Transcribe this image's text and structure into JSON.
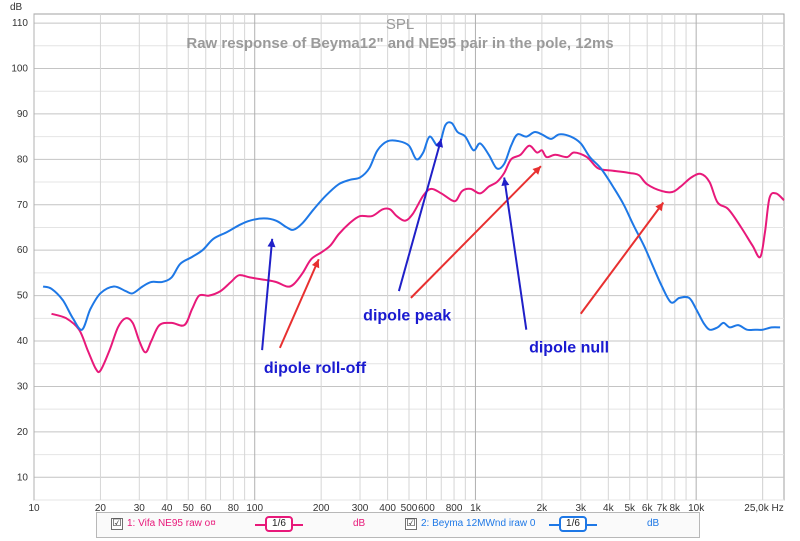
{
  "chart_data": {
    "type": "line",
    "title": "SPL",
    "subtitle": "Raw response of Beyma12\" and NE95 pair in the pole, 12ms",
    "ylabel": "dB",
    "xlabel": "Hz",
    "x_scale": "log",
    "xlim": [
      10,
      25000
    ],
    "ylim": [
      5,
      112
    ],
    "grid": true,
    "y_ticks": [
      10,
      20,
      30,
      40,
      50,
      60,
      70,
      80,
      90,
      100,
      110
    ],
    "y_tick_labels": [
      "10",
      "20",
      "30",
      "40",
      "50",
      "60",
      "70",
      "80",
      "90",
      "100",
      "110"
    ],
    "y_unit_label": "dB",
    "x_ticks": [
      10,
      20,
      30,
      40,
      50,
      60,
      80,
      100,
      200,
      300,
      400,
      500,
      600,
      800,
      1000,
      2000,
      3000,
      4000,
      5000,
      6000,
      7000,
      8000,
      10000,
      25000
    ],
    "x_tick_labels": [
      "10",
      "20",
      "30",
      "40",
      "50",
      "60",
      "80",
      "100",
      "200",
      "300",
      "400",
      "500",
      "600",
      "800",
      "1k",
      "2k",
      "3k",
      "4k",
      "5k",
      "6k",
      "7k",
      "8k",
      "10k",
      "25,0k Hz"
    ],
    "series": [
      {
        "name": "1: Vifa NE95 raw o¤",
        "color": "#e8197a",
        "points": [
          [
            12,
            46
          ],
          [
            14,
            45
          ],
          [
            16,
            42.5
          ],
          [
            17.5,
            38
          ],
          [
            19,
            34
          ],
          [
            20,
            33.5
          ],
          [
            22,
            38
          ],
          [
            24,
            43
          ],
          [
            26,
            45
          ],
          [
            28,
            44
          ],
          [
            30,
            40
          ],
          [
            32,
            37.5
          ],
          [
            34,
            40
          ],
          [
            37,
            43.5
          ],
          [
            42,
            44
          ],
          [
            48,
            43.5
          ],
          [
            52,
            47
          ],
          [
            56,
            50
          ],
          [
            62,
            50
          ],
          [
            70,
            51
          ],
          [
            78,
            53
          ],
          [
            85,
            54.5
          ],
          [
            95,
            54
          ],
          [
            110,
            53.5
          ],
          [
            125,
            53
          ],
          [
            140,
            52
          ],
          [
            150,
            52.5
          ],
          [
            165,
            55
          ],
          [
            180,
            58
          ],
          [
            200,
            59.5
          ],
          [
            220,
            61
          ],
          [
            240,
            63.5
          ],
          [
            270,
            66
          ],
          [
            300,
            67.5
          ],
          [
            340,
            67.5
          ],
          [
            380,
            69
          ],
          [
            410,
            69
          ],
          [
            440,
            67.5
          ],
          [
            480,
            66.5
          ],
          [
            520,
            68
          ],
          [
            580,
            72
          ],
          [
            630,
            73.5
          ],
          [
            700,
            72.5
          ],
          [
            780,
            71
          ],
          [
            820,
            71
          ],
          [
            870,
            73
          ],
          [
            950,
            73.5
          ],
          [
            1050,
            72.5
          ],
          [
            1150,
            74
          ],
          [
            1250,
            75
          ],
          [
            1350,
            77
          ],
          [
            1450,
            80
          ],
          [
            1600,
            81
          ],
          [
            1750,
            83
          ],
          [
            1900,
            81.5
          ],
          [
            2000,
            82
          ],
          [
            2100,
            80.5
          ],
          [
            2300,
            81
          ],
          [
            2600,
            80.5
          ],
          [
            2800,
            81.5
          ],
          [
            3200,
            80.5
          ],
          [
            3600,
            78
          ],
          [
            4200,
            77.5
          ],
          [
            5000,
            77
          ],
          [
            5500,
            76.5
          ],
          [
            6000,
            74.5
          ],
          [
            7000,
            73
          ],
          [
            7800,
            72.8
          ],
          [
            8500,
            74
          ],
          [
            9500,
            76
          ],
          [
            10500,
            76.8
          ],
          [
            11500,
            75
          ],
          [
            12500,
            70.5
          ],
          [
            14000,
            69
          ],
          [
            16000,
            65
          ],
          [
            18000,
            61
          ],
          [
            19500,
            58.5
          ],
          [
            20500,
            64
          ],
          [
            21500,
            71.5
          ],
          [
            23000,
            72.5
          ],
          [
            25000,
            71
          ]
        ]
      },
      {
        "name": "2: Beyma 12MWnd iraw 0",
        "color": "#1e78e6",
        "points": [
          [
            11,
            52
          ],
          [
            12,
            51.5
          ],
          [
            13.5,
            49
          ],
          [
            15,
            45
          ],
          [
            16.5,
            42.5
          ],
          [
            18,
            47
          ],
          [
            20,
            50.5
          ],
          [
            23,
            52
          ],
          [
            26,
            51
          ],
          [
            28,
            50.5
          ],
          [
            31,
            52
          ],
          [
            34,
            53
          ],
          [
            38,
            53
          ],
          [
            42,
            54
          ],
          [
            46,
            57
          ],
          [
            52,
            58.5
          ],
          [
            58,
            60
          ],
          [
            65,
            62.5
          ],
          [
            75,
            64
          ],
          [
            85,
            65.5
          ],
          [
            95,
            66.5
          ],
          [
            110,
            67
          ],
          [
            125,
            66.5
          ],
          [
            140,
            65
          ],
          [
            150,
            64.5
          ],
          [
            165,
            66
          ],
          [
            185,
            69
          ],
          [
            210,
            72
          ],
          [
            240,
            74.5
          ],
          [
            270,
            75.5
          ],
          [
            300,
            76
          ],
          [
            330,
            78
          ],
          [
            360,
            82
          ],
          [
            400,
            84
          ],
          [
            450,
            84
          ],
          [
            500,
            83
          ],
          [
            540,
            80
          ],
          [
            580,
            81.5
          ],
          [
            620,
            85
          ],
          [
            680,
            83
          ],
          [
            730,
            87.5
          ],
          [
            780,
            88
          ],
          [
            830,
            86
          ],
          [
            900,
            85
          ],
          [
            980,
            82
          ],
          [
            1050,
            83.5
          ],
          [
            1150,
            81
          ],
          [
            1250,
            78
          ],
          [
            1350,
            79
          ],
          [
            1450,
            83
          ],
          [
            1550,
            85.5
          ],
          [
            1700,
            85
          ],
          [
            1850,
            86
          ],
          [
            2000,
            85.5
          ],
          [
            2200,
            84.5
          ],
          [
            2400,
            85.5
          ],
          [
            2700,
            85
          ],
          [
            3000,
            83.5
          ],
          [
            3300,
            80.5
          ],
          [
            3700,
            78
          ],
          [
            4200,
            74
          ],
          [
            4700,
            70
          ],
          [
            5200,
            65.5
          ],
          [
            5800,
            61
          ],
          [
            6300,
            57
          ],
          [
            7000,
            52
          ],
          [
            7700,
            48.5
          ],
          [
            8400,
            49.5
          ],
          [
            9300,
            49.5
          ],
          [
            10000,
            47
          ],
          [
            10800,
            44
          ],
          [
            11500,
            42.5
          ],
          [
            12500,
            43
          ],
          [
            13300,
            44
          ],
          [
            14200,
            43
          ],
          [
            15500,
            43.5
          ],
          [
            17000,
            42.5
          ],
          [
            18500,
            42.5
          ],
          [
            20000,
            42.5
          ],
          [
            22000,
            43
          ],
          [
            24000,
            43
          ]
        ]
      }
    ],
    "annotations": [
      {
        "text": "dipole roll-off",
        "x": 110,
        "y": 33
      },
      {
        "text": "dipole peak",
        "x": 310,
        "y": 44.5
      },
      {
        "text": "dipole null",
        "x": 1750,
        "y": 37.5
      }
    ],
    "arrows": [
      {
        "color": "#2020c8",
        "from": [
          108,
          38
        ],
        "to": [
          120,
          62.5
        ]
      },
      {
        "color": "#e83030",
        "from": [
          130,
          38.5
        ],
        "to": [
          195,
          58
        ]
      },
      {
        "color": "#2020c8",
        "from": [
          450,
          51
        ],
        "to": [
          700,
          84.5
        ]
      },
      {
        "color": "#e83030",
        "from": [
          510,
          49.5
        ],
        "to": [
          1980,
          78.5
        ]
      },
      {
        "color": "#2020c8",
        "from": [
          1700,
          42.5
        ],
        "to": [
          1350,
          76
        ]
      },
      {
        "color": "#e83030",
        "from": [
          3000,
          46
        ],
        "to": [
          7100,
          70.5
        ]
      }
    ]
  },
  "legend": {
    "item1": {
      "label": "1: Vifa NE95 raw o¤",
      "smoothing": "1/6",
      "unit": "dB",
      "checked": "☑",
      "color": "#e8197a"
    },
    "item2": {
      "label": "2: Beyma 12MWnd iraw 0",
      "smoothing": "1/6",
      "unit": "dB",
      "checked": "☑",
      "color": "#1e78e6"
    }
  }
}
